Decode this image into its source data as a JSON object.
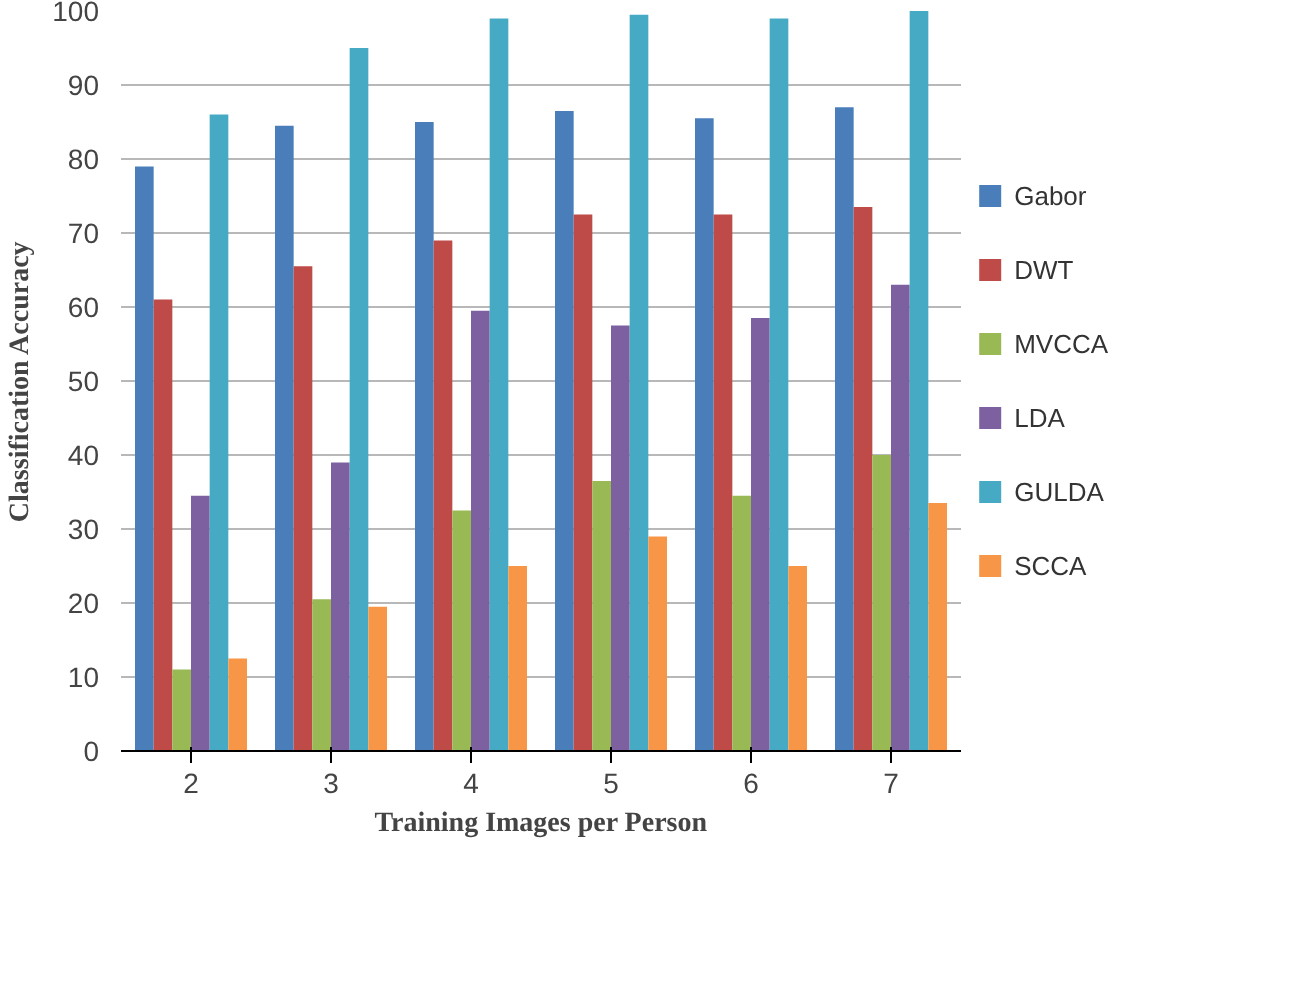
{
  "chart_data": {
    "type": "bar",
    "xlabel": "Training Images per Person",
    "ylabel": "Classification Accuracy",
    "categories": [
      "2",
      "3",
      "4",
      "5",
      "6",
      "7"
    ],
    "series": [
      {
        "name": "Gabor",
        "color": "#4a7ebb",
        "values": [
          79,
          84.5,
          85,
          86.5,
          85.5,
          87
        ]
      },
      {
        "name": "DWT",
        "color": "#be4b48",
        "values": [
          61,
          65.5,
          69,
          72.5,
          72.5,
          73.5
        ]
      },
      {
        "name": "MVCCA",
        "color": "#98b954",
        "values": [
          11,
          20.5,
          32.5,
          36.5,
          34.5,
          40
        ]
      },
      {
        "name": "LDA",
        "color": "#7d60a0",
        "values": [
          34.5,
          39,
          59.5,
          57.5,
          58.5,
          63
        ]
      },
      {
        "name": "GULDA",
        "color": "#46aac5",
        "values": [
          86,
          95,
          99,
          99.5,
          99,
          100
        ]
      },
      {
        "name": "SCCA",
        "color": "#f79646",
        "values": [
          12.5,
          19.5,
          25,
          29,
          25,
          33.5
        ]
      }
    ],
    "ylim": [
      0,
      100
    ],
    "yticks": [
      0,
      10,
      20,
      30,
      40,
      50,
      60,
      70,
      80,
      90,
      100
    ],
    "grid": "y",
    "legend": "right"
  }
}
